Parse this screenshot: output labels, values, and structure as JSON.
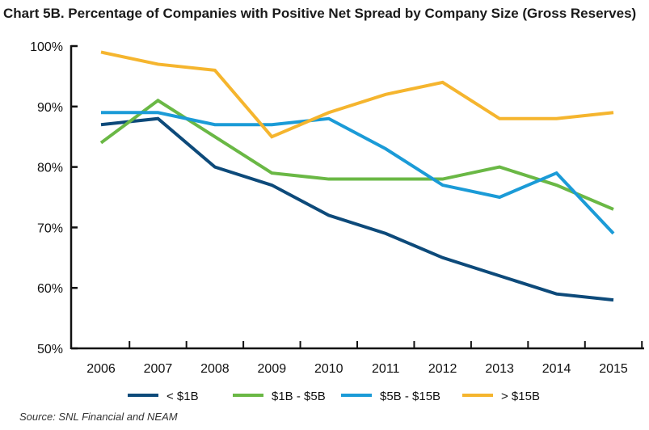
{
  "chart_data": {
    "type": "line",
    "title": "Chart 5B. Percentage of Companies with Positive Net Spread by Company  Size (Gross Reserves)",
    "source": "Source: SNL Financial and NEAM",
    "x": [
      "2006",
      "2007",
      "2008",
      "2009",
      "2010",
      "2011",
      "2012",
      "2013",
      "2014",
      "2015"
    ],
    "y_ticks": [
      "50%",
      "60%",
      "70%",
      "80%",
      "90%",
      "100%"
    ],
    "ylim": [
      50,
      100
    ],
    "grid": false,
    "legend_position": "bottom",
    "series": [
      {
        "name": "< $1B",
        "color": "#0d4a7a",
        "values": [
          87,
          88,
          80,
          77,
          72,
          69,
          65,
          62,
          59,
          58
        ]
      },
      {
        "name": "$1B - $5B",
        "color": "#6ab845",
        "values": [
          84,
          91,
          85,
          79,
          78,
          78,
          78,
          80,
          77,
          73
        ]
      },
      {
        "name": "$5B - $15B",
        "color": "#1b9bd7",
        "values": [
          89,
          89,
          87,
          87,
          88,
          83,
          77,
          75,
          79,
          69
        ]
      },
      {
        "name": "> $15B",
        "color": "#f5b52e",
        "values": [
          99,
          97,
          96,
          85,
          89,
          92,
          94,
          88,
          88,
          89
        ]
      }
    ]
  }
}
